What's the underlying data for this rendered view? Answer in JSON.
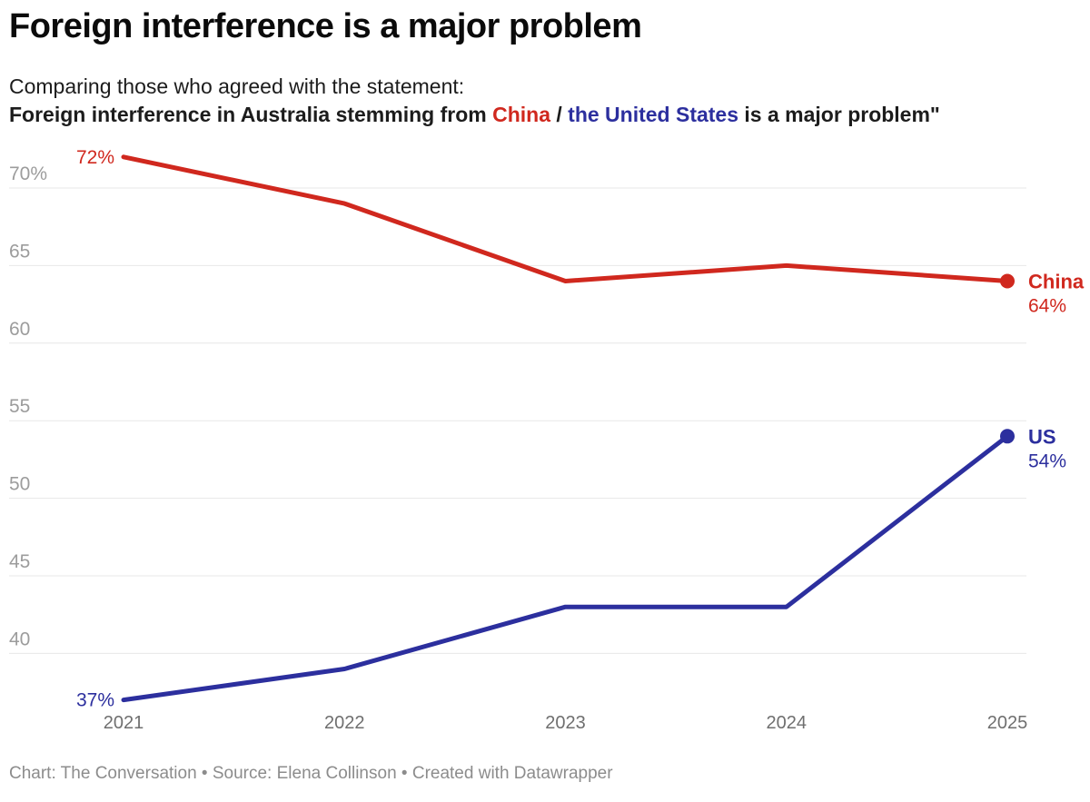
{
  "header": {
    "title": "Foreign interference is a major problem",
    "description_line1": "Comparing those who agreed with the statement:",
    "description_line2": {
      "prefix": "Foreign interference in Australia stemming from ",
      "china": "China",
      "separator": " / ",
      "us": "the United States",
      "suffix": " is a major problem\""
    }
  },
  "chart_data": {
    "type": "line",
    "x": [
      "2021",
      "2022",
      "2023",
      "2024",
      "2025"
    ],
    "series": [
      {
        "name": "China",
        "color": "#d0281e",
        "values": [
          72,
          69,
          64,
          65,
          64
        ],
        "first_point_label": "72%",
        "last_point_label": "64%"
      },
      {
        "name": "US",
        "color": "#2c2f9e",
        "values": [
          37,
          39,
          43,
          43,
          54
        ],
        "first_point_label": "37%",
        "last_point_label": "54%"
      }
    ],
    "y_ticks": [
      {
        "value": 70,
        "label": "70%"
      },
      {
        "value": 65,
        "label": "65"
      },
      {
        "value": 60,
        "label": "60"
      },
      {
        "value": 55,
        "label": "55"
      },
      {
        "value": 50,
        "label": "50"
      },
      {
        "value": 45,
        "label": "45"
      },
      {
        "value": 40,
        "label": "40"
      }
    ],
    "ylim": [
      36.2,
      72.8
    ],
    "xlabel": "",
    "ylabel": "",
    "grid": "horizontal-only",
    "legend_position": "line-end-labels"
  },
  "footer": {
    "credit": "Chart: The Conversation • Source: Elena Collinson • Created with Datawrapper"
  }
}
